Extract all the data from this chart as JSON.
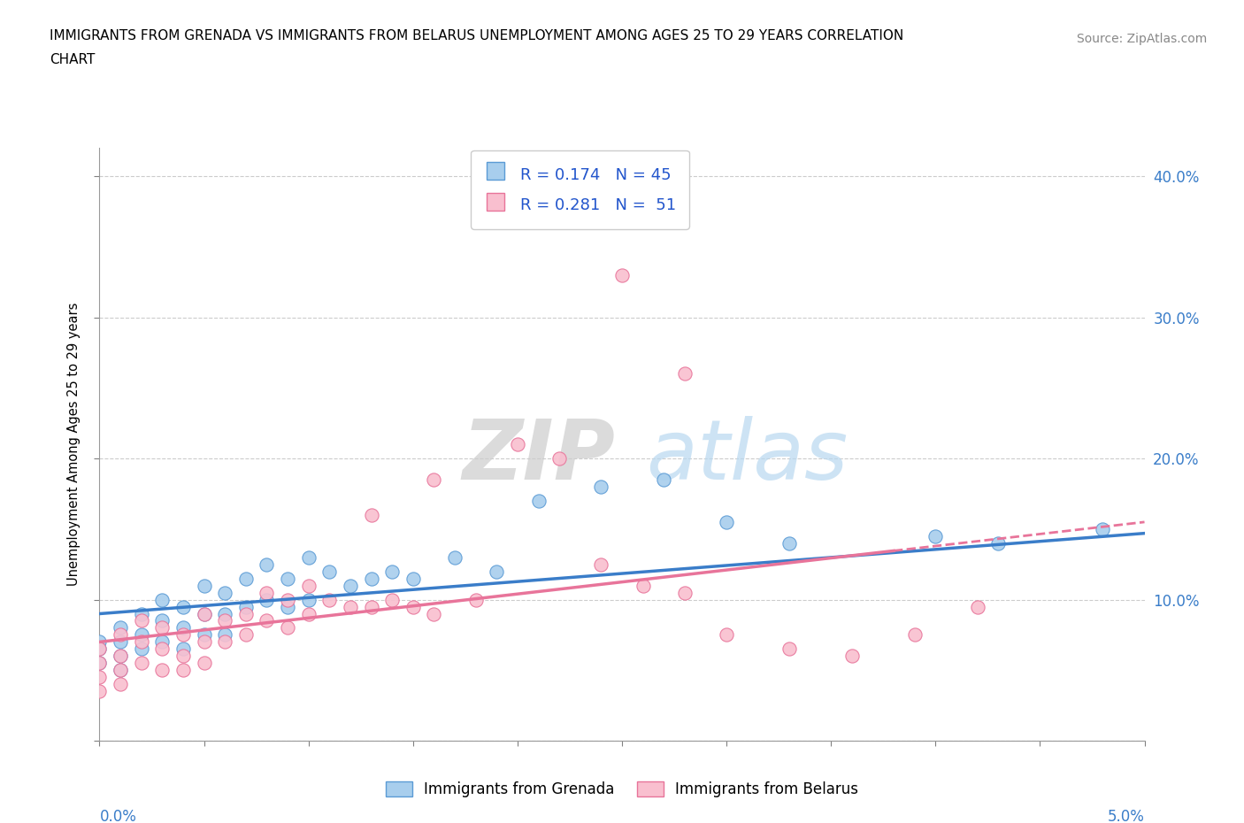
{
  "title_line1": "IMMIGRANTS FROM GRENADA VS IMMIGRANTS FROM BELARUS UNEMPLOYMENT AMONG AGES 25 TO 29 YEARS CORRELATION",
  "title_line2": "CHART",
  "source": "Source: ZipAtlas.com",
  "ylabel": "Unemployment Among Ages 25 to 29 years",
  "grenada_color": "#A8CEED",
  "grenada_edge_color": "#5B9BD5",
  "belarus_color": "#F9BFCF",
  "belarus_edge_color": "#E8749A",
  "grenada_line_color": "#3A7DC9",
  "belarus_line_color": "#E8749A",
  "watermark_zip": "ZIP",
  "watermark_atlas": "atlas",
  "xmin": 0.0,
  "xmax": 0.05,
  "ymin": 0.0,
  "ymax": 0.42,
  "ytick_positions": [
    0.0,
    0.1,
    0.2,
    0.3,
    0.4
  ],
  "ytick_labels_right": [
    "",
    "10.0%",
    "20.0%",
    "30.0%",
    "40.0%"
  ],
  "grenada_x": [
    0.0,
    0.0,
    0.0,
    0.001,
    0.001,
    0.001,
    0.001,
    0.002,
    0.002,
    0.002,
    0.003,
    0.003,
    0.003,
    0.004,
    0.004,
    0.004,
    0.005,
    0.005,
    0.005,
    0.006,
    0.006,
    0.006,
    0.007,
    0.007,
    0.008,
    0.008,
    0.009,
    0.009,
    0.01,
    0.01,
    0.011,
    0.012,
    0.013,
    0.014,
    0.015,
    0.017,
    0.019,
    0.021,
    0.024,
    0.027,
    0.03,
    0.033,
    0.04,
    0.043,
    0.048
  ],
  "grenada_y": [
    0.07,
    0.065,
    0.055,
    0.08,
    0.07,
    0.06,
    0.05,
    0.09,
    0.075,
    0.065,
    0.1,
    0.085,
    0.07,
    0.095,
    0.08,
    0.065,
    0.11,
    0.09,
    0.075,
    0.105,
    0.09,
    0.075,
    0.115,
    0.095,
    0.125,
    0.1,
    0.115,
    0.095,
    0.13,
    0.1,
    0.12,
    0.11,
    0.115,
    0.12,
    0.115,
    0.13,
    0.12,
    0.17,
    0.18,
    0.185,
    0.155,
    0.14,
    0.145,
    0.14,
    0.15
  ],
  "belarus_x": [
    0.0,
    0.0,
    0.0,
    0.0,
    0.001,
    0.001,
    0.001,
    0.001,
    0.002,
    0.002,
    0.002,
    0.003,
    0.003,
    0.003,
    0.004,
    0.004,
    0.004,
    0.005,
    0.005,
    0.005,
    0.006,
    0.006,
    0.007,
    0.007,
    0.008,
    0.008,
    0.009,
    0.009,
    0.01,
    0.01,
    0.011,
    0.012,
    0.013,
    0.014,
    0.015,
    0.016,
    0.018,
    0.02,
    0.022,
    0.024,
    0.026,
    0.028,
    0.03,
    0.033,
    0.036,
    0.039,
    0.042,
    0.025,
    0.028,
    0.013,
    0.016
  ],
  "belarus_y": [
    0.065,
    0.055,
    0.045,
    0.035,
    0.075,
    0.06,
    0.05,
    0.04,
    0.085,
    0.07,
    0.055,
    0.08,
    0.065,
    0.05,
    0.075,
    0.06,
    0.05,
    0.09,
    0.07,
    0.055,
    0.085,
    0.07,
    0.09,
    0.075,
    0.105,
    0.085,
    0.1,
    0.08,
    0.11,
    0.09,
    0.1,
    0.095,
    0.095,
    0.1,
    0.095,
    0.09,
    0.1,
    0.21,
    0.2,
    0.125,
    0.11,
    0.105,
    0.075,
    0.065,
    0.06,
    0.075,
    0.095,
    0.33,
    0.26,
    0.16,
    0.185
  ],
  "gren_line_x0": 0.0,
  "gren_line_x1": 0.05,
  "gren_line_y0": 0.09,
  "gren_line_y1": 0.147,
  "bela_line_x0": 0.0,
  "bela_line_x1": 0.05,
  "bela_line_y0": 0.07,
  "bela_line_y1": 0.155
}
